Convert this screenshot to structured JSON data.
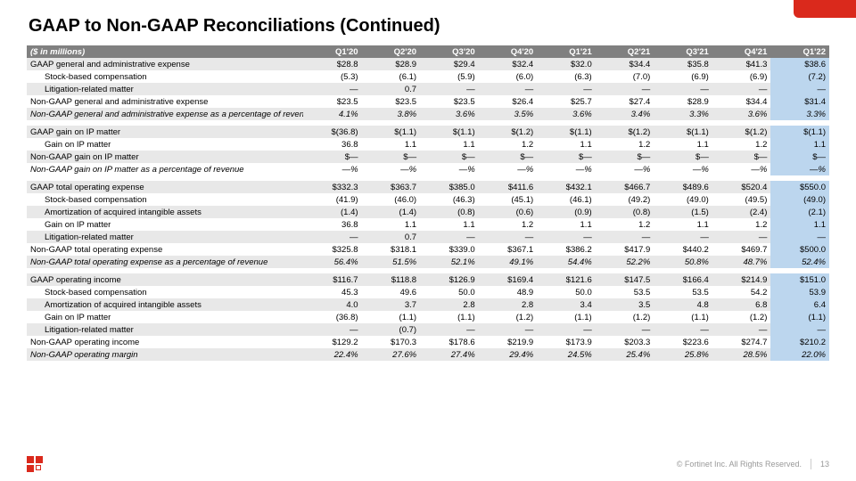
{
  "title": "GAAP to Non-GAAP Reconciliations (Continued)",
  "header_label": "($ in millions)",
  "periods": [
    "Q1'20",
    "Q2'20",
    "Q3'20",
    "Q4'20",
    "Q1'21",
    "Q2'21",
    "Q3'21",
    "Q4'21",
    "Q1'22"
  ],
  "rows": [
    {
      "label": "GAAP general and administrative expense",
      "vals": [
        "$28.8",
        "$28.9",
        "$29.4",
        "$32.4",
        "$32.0",
        "$34.4",
        "$35.8",
        "$41.3",
        "$38.6"
      ],
      "cls": "even"
    },
    {
      "label": "Stock-based compensation",
      "vals": [
        "(5.3)",
        "(6.1)",
        "(5.9)",
        "(6.0)",
        "(6.3)",
        "(7.0)",
        "(6.9)",
        "(6.9)",
        "(7.2)"
      ],
      "cls": "odd",
      "indent": true
    },
    {
      "label": "Litigation-related matter",
      "vals": [
        "—",
        "0.7",
        "—",
        "—",
        "—",
        "—",
        "—",
        "—",
        "—"
      ],
      "cls": "even",
      "indent": true
    },
    {
      "label": "Non-GAAP general and administrative expense",
      "vals": [
        "$23.5",
        "$23.5",
        "$23.5",
        "$26.4",
        "$25.7",
        "$27.4",
        "$28.9",
        "$34.4",
        "$31.4"
      ],
      "cls": "odd"
    },
    {
      "label": "Non-GAAP general and administrative expense as a percentage of revenue",
      "vals": [
        "4.1%",
        "3.8%",
        "3.6%",
        "3.5%",
        "3.6%",
        "3.4%",
        "3.3%",
        "3.6%",
        "3.3%"
      ],
      "cls": "even italic"
    },
    {
      "spacer": true
    },
    {
      "label": "GAAP gain on IP matter",
      "vals": [
        "$(36.8)",
        "$(1.1)",
        "$(1.1)",
        "$(1.2)",
        "$(1.1)",
        "$(1.2)",
        "$(1.1)",
        "$(1.2)",
        "$(1.1)"
      ],
      "cls": "even"
    },
    {
      "label": "Gain on IP matter",
      "vals": [
        "36.8",
        "1.1",
        "1.1",
        "1.2",
        "1.1",
        "1.2",
        "1.1",
        "1.2",
        "1.1"
      ],
      "cls": "odd",
      "indent": true
    },
    {
      "label": "Non-GAAP gain on IP matter",
      "vals": [
        "$—",
        "$—",
        "$—",
        "$—",
        "$—",
        "$—",
        "$—",
        "$—",
        "$—"
      ],
      "cls": "even"
    },
    {
      "label": "Non-GAAP gain on IP matter as a percentage of revenue",
      "vals": [
        "—%",
        "—%",
        "—%",
        "—%",
        "—%",
        "—%",
        "—%",
        "—%",
        "—%"
      ],
      "cls": "odd italic"
    },
    {
      "spacer": true
    },
    {
      "label": "GAAP total operating expense",
      "vals": [
        "$332.3",
        "$363.7",
        "$385.0",
        "$411.6",
        "$432.1",
        "$466.7",
        "$489.6",
        "$520.4",
        "$550.0"
      ],
      "cls": "even"
    },
    {
      "label": "Stock-based compensation",
      "vals": [
        "(41.9)",
        "(46.0)",
        "(46.3)",
        "(45.1)",
        "(46.1)",
        "(49.2)",
        "(49.0)",
        "(49.5)",
        "(49.0)"
      ],
      "cls": "odd",
      "indent": true
    },
    {
      "label": "Amortization of acquired intangible assets",
      "vals": [
        "(1.4)",
        "(1.4)",
        "(0.8)",
        "(0.6)",
        "(0.9)",
        "(0.8)",
        "(1.5)",
        "(2.4)",
        "(2.1)"
      ],
      "cls": "even",
      "indent": true
    },
    {
      "label": "Gain on IP matter",
      "vals": [
        "36.8",
        "1.1",
        "1.1",
        "1.2",
        "1.1",
        "1.2",
        "1.1",
        "1.2",
        "1.1"
      ],
      "cls": "odd",
      "indent": true
    },
    {
      "label": "Litigation-related matter",
      "vals": [
        "—",
        "0.7",
        "—",
        "—",
        "—",
        "—",
        "—",
        "—",
        "—"
      ],
      "cls": "even",
      "indent": true
    },
    {
      "label": "Non-GAAP total operating expense",
      "vals": [
        "$325.8",
        "$318.1",
        "$339.0",
        "$367.1",
        "$386.2",
        "$417.9",
        "$440.2",
        "$469.7",
        "$500.0"
      ],
      "cls": "odd"
    },
    {
      "label": "Non-GAAP total operating expense as a percentage of revenue",
      "vals": [
        "56.4%",
        "51.5%",
        "52.1%",
        "49.1%",
        "54.4%",
        "52.2%",
        "50.8%",
        "48.7%",
        "52.4%"
      ],
      "cls": "even italic"
    },
    {
      "spacer": true
    },
    {
      "label": "GAAP operating income",
      "vals": [
        "$116.7",
        "$118.8",
        "$126.9",
        "$169.4",
        "$121.6",
        "$147.5",
        "$166.4",
        "$214.9",
        "$151.0"
      ],
      "cls": "even"
    },
    {
      "label": "Stock-based compensation",
      "vals": [
        "45.3",
        "49.6",
        "50.0",
        "48.9",
        "50.0",
        "53.5",
        "53.5",
        "54.2",
        "53.9"
      ],
      "cls": "odd",
      "indent": true
    },
    {
      "label": "Amortization of acquired intangible assets",
      "vals": [
        "4.0",
        "3.7",
        "2.8",
        "2.8",
        "3.4",
        "3.5",
        "4.8",
        "6.8",
        "6.4"
      ],
      "cls": "even",
      "indent": true
    },
    {
      "label": "Gain on IP matter",
      "vals": [
        "(36.8)",
        "(1.1)",
        "(1.1)",
        "(1.2)",
        "(1.1)",
        "(1.2)",
        "(1.1)",
        "(1.2)",
        "(1.1)"
      ],
      "cls": "odd",
      "indent": true
    },
    {
      "label": "Litigation-related matter",
      "vals": [
        "—",
        "(0.7)",
        "—",
        "—",
        "—",
        "—",
        "—",
        "—",
        "—"
      ],
      "cls": "even",
      "indent": true
    },
    {
      "label": "Non-GAAP operating income",
      "vals": [
        "$129.2",
        "$170.3",
        "$178.6",
        "$219.9",
        "$173.9",
        "$203.3",
        "$223.6",
        "$274.7",
        "$210.2"
      ],
      "cls": "odd"
    },
    {
      "label": "Non-GAAP operating margin",
      "vals": [
        "22.4%",
        "27.6%",
        "27.4%",
        "29.4%",
        "24.5%",
        "25.4%",
        "25.8%",
        "28.5%",
        "22.0%"
      ],
      "cls": "even italic"
    }
  ],
  "highlight_col": 8,
  "footer": {
    "copyright": "© Fortinet Inc. All Rights Reserved.",
    "page": "13"
  },
  "colors": {
    "accent": "#da291c",
    "header_bg": "#808080",
    "row_even": "#e8e8e8",
    "highlight": "#bcd6ee"
  }
}
